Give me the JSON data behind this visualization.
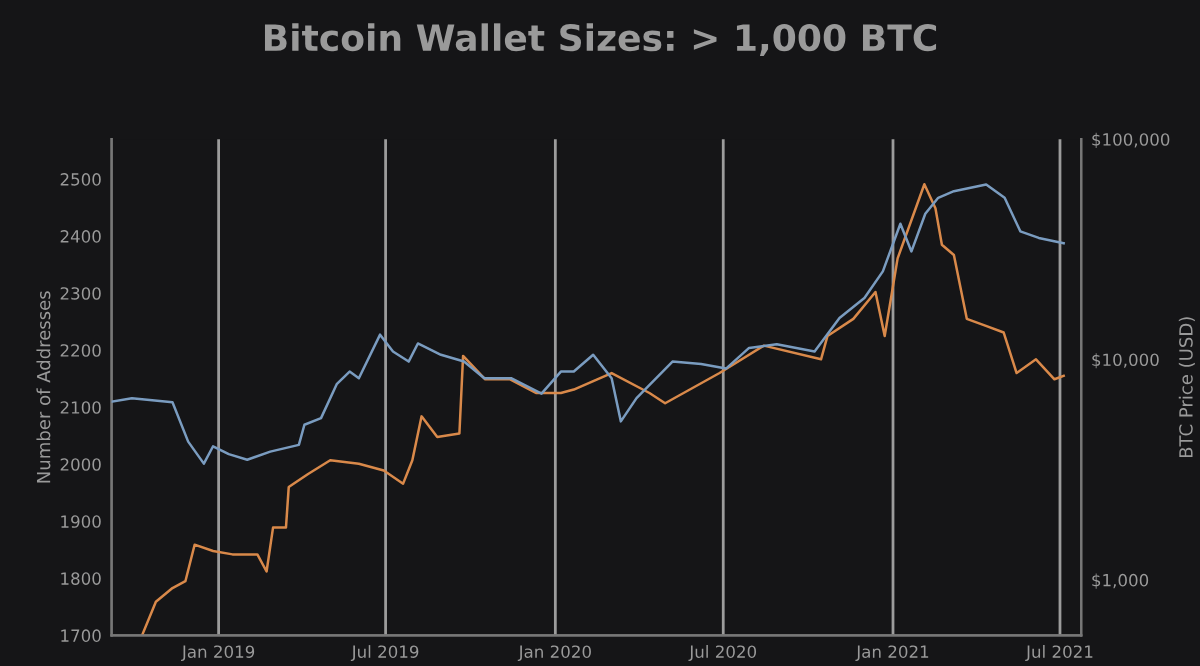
{
  "chart_data": {
    "type": "line",
    "title": "Bitcoin Wallet Sizes: > 1,000 BTC",
    "ylabel": "Number of Addresses",
    "y2label": "BTC Price (USD)",
    "xlim": [
      "2018-09-07",
      "2021-07-24"
    ],
    "xticks": [
      {
        "value": "2019-01-01",
        "label": "Jan 2019"
      },
      {
        "value": "2019-07-01",
        "label": "Jul 2019"
      },
      {
        "value": "2020-01-01",
        "label": "Jan 2020"
      },
      {
        "value": "2020-07-01",
        "label": "Jul 2020"
      },
      {
        "value": "2021-01-01",
        "label": "Jan 2021"
      },
      {
        "value": "2021-07-01",
        "label": "Jul 2021"
      }
    ],
    "ylim": [
      1700,
      2570
    ],
    "yticks": [
      1700,
      1800,
      1900,
      2000,
      2100,
      2200,
      2300,
      2400,
      2500
    ],
    "y2lim": [
      560,
      100000
    ],
    "y2ticks": [
      {
        "value": 1000,
        "label": "$1,000"
      },
      {
        "value": 10000,
        "label": "$10,000"
      },
      {
        "value": 100000,
        "label": "$100,000"
      }
    ],
    "log": "y2",
    "grid": "x",
    "legend": false,
    "series": [
      {
        "color": "#d9894a",
        "axis": "y",
        "x": [
          "2018-10-10",
          "2018-10-25",
          "2018-11-12",
          "2018-11-26",
          "2018-12-06",
          "2018-12-26",
          "2019-01-16",
          "2019-02-12",
          "2019-02-22",
          "2019-03-01",
          "2019-03-15",
          "2019-03-18",
          "2019-04-08",
          "2019-05-02",
          "2019-06-02",
          "2019-06-29",
          "2019-07-20",
          "2019-07-30",
          "2019-08-09",
          "2019-08-26",
          "2019-09-19",
          "2019-09-23",
          "2019-10-17",
          "2019-11-13",
          "2019-12-11",
          "2020-01-07",
          "2020-01-21",
          "2020-03-02",
          "2020-04-12",
          "2020-04-29",
          "2020-06-27",
          "2020-08-14",
          "2020-10-15",
          "2020-10-22",
          "2020-11-19",
          "2020-12-13",
          "2020-12-23",
          "2021-01-06",
          "2021-01-27",
          "2021-02-04",
          "2021-02-16",
          "2021-02-23",
          "2021-03-08",
          "2021-03-22",
          "2021-04-11",
          "2021-05-01",
          "2021-05-15",
          "2021-06-05",
          "2021-06-25",
          "2021-07-05"
        ],
        "values": [
          1700,
          1759,
          1783,
          1795,
          1859,
          1848,
          1842,
          1842,
          1812,
          1889,
          1889,
          1960,
          1983,
          2007,
          2001,
          1989,
          1966,
          2007,
          2084,
          2048,
          2054,
          2190,
          2149,
          2149,
          2125,
          2125,
          2131,
          2160,
          2125,
          2107,
          2160,
          2208,
          2184,
          2225,
          2255,
          2302,
          2225,
          2361,
          2455,
          2491,
          2449,
          2385,
          2367,
          2255,
          2243,
          2231,
          2160,
          2184,
          2149,
          2155
        ]
      },
      {
        "color": "#7a9cc0",
        "axis": "y2",
        "x": [
          "2018-09-07",
          "2018-09-29",
          "2018-11-12",
          "2018-11-29",
          "2018-12-16",
          "2018-12-26",
          "2019-01-12",
          "2019-02-01",
          "2019-02-26",
          "2019-03-29",
          "2019-04-04",
          "2019-04-22",
          "2019-05-09",
          "2019-05-23",
          "2019-06-02",
          "2019-06-25",
          "2019-07-09",
          "2019-07-26",
          "2019-08-05",
          "2019-08-30",
          "2019-09-24",
          "2019-10-16",
          "2019-11-14",
          "2019-12-17",
          "2020-01-07",
          "2020-01-21",
          "2020-02-11",
          "2020-03-02",
          "2020-03-12",
          "2020-03-29",
          "2020-05-07",
          "2020-06-07",
          "2020-07-04",
          "2020-07-29",
          "2020-08-28",
          "2020-10-08",
          "2020-11-04",
          "2020-12-01",
          "2020-12-21",
          "2021-01-09",
          "2021-01-21",
          "2021-02-05",
          "2021-02-19",
          "2021-03-08",
          "2021-04-12",
          "2021-05-02",
          "2021-05-19",
          "2021-06-08",
          "2021-07-05"
        ],
        "values": [
          6440,
          6680,
          6400,
          4240,
          3370,
          4040,
          3720,
          3510,
          3820,
          4100,
          5060,
          5420,
          7730,
          8820,
          8230,
          12970,
          10870,
          9790,
          11830,
          10510,
          9790,
          8230,
          8230,
          7000,
          8820,
          8820,
          10510,
          8230,
          5240,
          6680,
          9790,
          9540,
          9100,
          11290,
          11740,
          10870,
          15420,
          19020,
          25120,
          41320,
          30950,
          45860,
          54200,
          58100,
          62300,
          54200,
          38190,
          35640,
          33700
        ]
      }
    ]
  }
}
